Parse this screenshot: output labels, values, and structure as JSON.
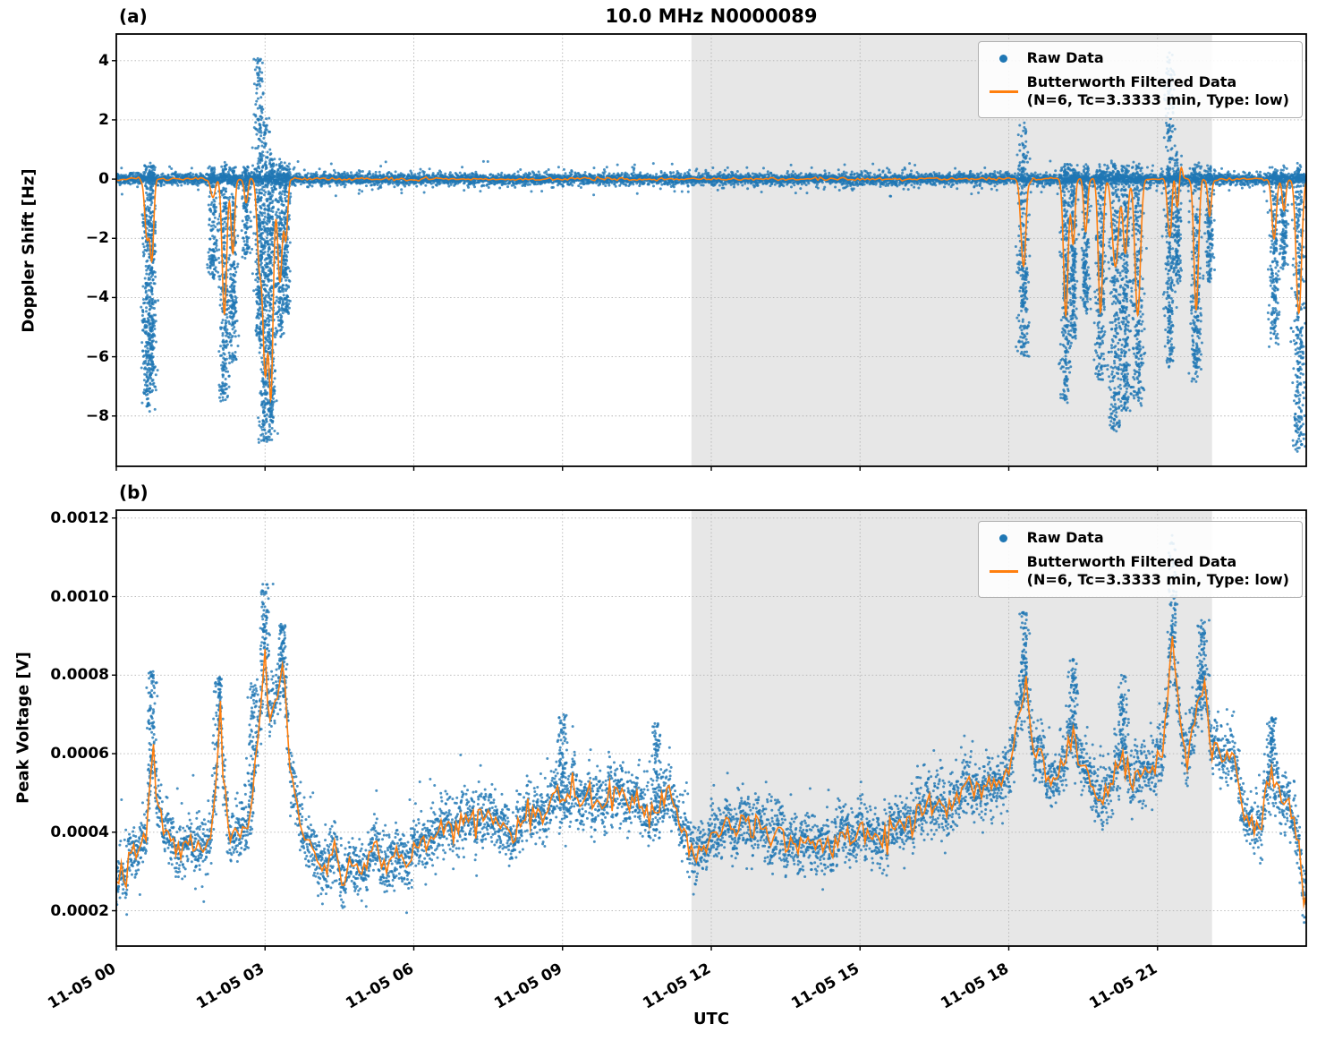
{
  "title": "10.0 MHz N0000089",
  "xlabel": "UTC",
  "xlim_hours": [
    0,
    24
  ],
  "xticks_hours": [
    0,
    3,
    6,
    9,
    12,
    15,
    18,
    21
  ],
  "xtick_labels": [
    "11-05 00",
    "11-05 03",
    "11-05 06",
    "11-05 09",
    "11-05 12",
    "11-05 15",
    "11-05 18",
    "11-05 21"
  ],
  "shaded_region_hours": [
    11.6,
    22.1
  ],
  "legend": {
    "raw": "Raw Data",
    "filtered_line1": "Butterworth Filtered Data",
    "filtered_line2": "(N=6, Tc=3.3333 min, Type: low)"
  },
  "colors": {
    "raw": "#1f77b4",
    "filtered": "#ff7f0e",
    "shade": "#e7e7e7",
    "grid": "#b3b3b3",
    "spine": "#000000"
  },
  "panels": [
    {
      "label": "(a)",
      "ylabel": "Doppler Shift [Hz]",
      "ylim": [
        -9.7,
        4.9
      ],
      "yticks": [
        4,
        2,
        0,
        -2,
        -4,
        -6,
        -8
      ],
      "ytick_labels": [
        "4",
        "2",
        "0",
        "−2",
        "−4",
        "−6",
        "−8"
      ]
    },
    {
      "label": "(b)",
      "ylabel": "Peak Voltage [V]",
      "ylim": [
        0.00011,
        0.00122
      ],
      "yticks": [
        0.0012,
        0.001,
        0.0008,
        0.0006,
        0.0004,
        0.0002
      ],
      "ytick_labels": [
        "0.0012",
        "0.0010",
        "0.0008",
        "0.0006",
        "0.0004",
        "0.0002"
      ]
    }
  ],
  "chart_data": [
    {
      "type": "scatter",
      "panel": "a",
      "title": "10.0 MHz N0000089",
      "ylabel": "Doppler Shift [Hz]",
      "xlabel": "UTC",
      "x_unit": "hours after 11-05 00:00 UTC",
      "ylim": [
        -9.7,
        4.9
      ],
      "series": [
        {
          "name": "Raw Data",
          "style": "scatter",
          "color": "#1f77b4"
        },
        {
          "name": "Butterworth Filtered Data (N=6, Tc=3.3333 min, Type: low)",
          "style": "line",
          "color": "#ff7f0e"
        }
      ],
      "baseline_hz": 0,
      "baseline_noise_sigma_hz": 0.12,
      "events": [
        {
          "t": 0.62,
          "width": 0.05,
          "min": -7.8,
          "max": 0.6,
          "filtered_min": -2.0
        },
        {
          "t": 0.72,
          "width": 0.04,
          "min": -7.2,
          "max": 0.5,
          "filtered_min": -2.6
        },
        {
          "t": 1.95,
          "width": 0.05,
          "min": -3.3,
          "max": 0.4,
          "filtered_min": -0.6
        },
        {
          "t": 2.18,
          "width": 0.05,
          "min": -7.5,
          "max": 0.5,
          "filtered_min": -4.6
        },
        {
          "t": 2.35,
          "width": 0.04,
          "min": -6.2,
          "max": 0.4,
          "filtered_min": -2.5
        },
        {
          "t": 2.62,
          "width": 0.04,
          "min": -2.6,
          "max": 0.4,
          "filtered_min": -0.8
        },
        {
          "t": 2.88,
          "width": 0.05,
          "min": -5.5,
          "max": 4.1,
          "filtered_min": -2.5
        },
        {
          "t": 3.0,
          "width": 0.06,
          "min": -9.0,
          "max": 2.0,
          "filtered_min": -6.5
        },
        {
          "t": 3.12,
          "width": 0.05,
          "min": -8.8,
          "max": 0.8,
          "filtered_min": -7.0
        },
        {
          "t": 3.3,
          "width": 0.05,
          "min": -5.3,
          "max": 0.6,
          "filtered_min": -3.5
        },
        {
          "t": 3.42,
          "width": 0.04,
          "min": -4.6,
          "max": 0.5,
          "filtered_min": -2.0
        },
        {
          "t": 18.3,
          "width": 0.06,
          "min": -6.0,
          "max": 1.75,
          "filtered_min": -3.0
        },
        {
          "t": 19.15,
          "width": 0.05,
          "min": -7.5,
          "max": 0.5,
          "filtered_min": -4.6
        },
        {
          "t": 19.3,
          "width": 0.04,
          "min": -5.5,
          "max": 0.4,
          "filtered_min": -2.2
        },
        {
          "t": 19.55,
          "width": 0.04,
          "min": -4.5,
          "max": 0.4,
          "filtered_min": -1.8
        },
        {
          "t": 19.85,
          "width": 0.05,
          "min": -6.8,
          "max": 0.5,
          "filtered_min": -4.5
        },
        {
          "t": 20.15,
          "width": 0.07,
          "min": -8.5,
          "max": 0.6,
          "filtered_min": -3.0
        },
        {
          "t": 20.35,
          "width": 0.05,
          "min": -7.9,
          "max": 0.5,
          "filtered_min": -2.5
        },
        {
          "t": 20.6,
          "width": 0.06,
          "min": -7.6,
          "max": 0.5,
          "filtered_min": -4.6
        },
        {
          "t": 21.25,
          "width": 0.05,
          "min": -6.3,
          "max": 4.2,
          "filtered_min": -2.0
        },
        {
          "t": 21.4,
          "width": 0.04,
          "min": -3.5,
          "max": 1.0,
          "filtered_min": -1.0
        },
        {
          "t": 21.78,
          "width": 0.05,
          "min": -6.8,
          "max": 0.5,
          "filtered_min": -4.4
        },
        {
          "t": 22.05,
          "width": 0.04,
          "min": -3.5,
          "max": 0.4,
          "filtered_min": -1.2
        },
        {
          "t": 23.35,
          "width": 0.05,
          "min": -5.6,
          "max": 0.4,
          "filtered_min": -2.0
        },
        {
          "t": 23.55,
          "width": 0.04,
          "min": -3.0,
          "max": 0.3,
          "filtered_min": -1.0
        },
        {
          "t": 23.85,
          "width": 0.06,
          "min": -9.1,
          "max": 0.5,
          "filtered_min": -4.6
        }
      ]
    },
    {
      "type": "scatter",
      "panel": "b",
      "ylabel": "Peak Voltage [V]",
      "xlabel": "UTC",
      "x_unit": "hours after 11-05 00:00 UTC",
      "ylim": [
        0.00011,
        0.00122
      ],
      "series": [
        {
          "name": "Raw Data",
          "style": "scatter",
          "color": "#1f77b4"
        },
        {
          "name": "Butterworth Filtered Data (N=6, Tc=3.3333 min, Type: low)",
          "style": "line",
          "color": "#ff7f0e"
        }
      ],
      "raw_noise_sigma_v": 3.5e-05,
      "filtered_keypoints_hour_volts": [
        [
          0,
          0.00028
        ],
        [
          0.2,
          0.00032
        ],
        [
          0.4,
          0.00036
        ],
        [
          0.6,
          0.0004
        ],
        [
          0.7,
          0.00055
        ],
        [
          0.75,
          0.00065
        ],
        [
          0.8,
          0.0005
        ],
        [
          0.9,
          0.00042
        ],
        [
          1.1,
          0.0004
        ],
        [
          1.3,
          0.00036
        ],
        [
          1.5,
          0.00038
        ],
        [
          1.7,
          0.00034
        ],
        [
          1.9,
          0.0004
        ],
        [
          2.05,
          0.00058
        ],
        [
          2.1,
          0.00075
        ],
        [
          2.15,
          0.00055
        ],
        [
          2.3,
          0.0004
        ],
        [
          2.5,
          0.00038
        ],
        [
          2.7,
          0.00045
        ],
        [
          2.8,
          0.00055
        ],
        [
          2.95,
          0.0008
        ],
        [
          3.0,
          0.00085
        ],
        [
          3.1,
          0.00065
        ],
        [
          3.25,
          0.00075
        ],
        [
          3.35,
          0.00082
        ],
        [
          3.5,
          0.0006
        ],
        [
          3.6,
          0.0005
        ],
        [
          3.7,
          0.00045
        ],
        [
          3.8,
          0.00038
        ],
        [
          4.0,
          0.00034
        ],
        [
          4.2,
          0.0003
        ],
        [
          4.4,
          0.00034
        ],
        [
          4.6,
          0.00028
        ],
        [
          4.8,
          0.00032
        ],
        [
          5.0,
          0.0003
        ],
        [
          5.2,
          0.00036
        ],
        [
          5.4,
          0.00032
        ],
        [
          5.6,
          0.00035
        ],
        [
          5.8,
          0.00032
        ],
        [
          6.0,
          0.00036
        ],
        [
          6.2,
          0.0004
        ],
        [
          6.4,
          0.00038
        ],
        [
          6.6,
          0.00042
        ],
        [
          6.8,
          0.0004
        ],
        [
          7.0,
          0.00044
        ],
        [
          7.2,
          0.00042
        ],
        [
          7.4,
          0.00046
        ],
        [
          7.6,
          0.00044
        ],
        [
          7.8,
          0.00042
        ],
        [
          8.0,
          0.0004
        ],
        [
          8.2,
          0.00044
        ],
        [
          8.4,
          0.00046
        ],
        [
          8.6,
          0.00044
        ],
        [
          8.8,
          0.00048
        ],
        [
          9.0,
          0.0005
        ],
        [
          9.2,
          0.00052
        ],
        [
          9.4,
          0.00048
        ],
        [
          9.6,
          0.0005
        ],
        [
          9.8,
          0.00046
        ],
        [
          10.0,
          0.00048
        ],
        [
          10.2,
          0.0005
        ],
        [
          10.4,
          0.00046
        ],
        [
          10.6,
          0.00048
        ],
        [
          10.8,
          0.00044
        ],
        [
          11.0,
          0.00046
        ],
        [
          11.2,
          0.0005
        ],
        [
          11.4,
          0.00042
        ],
        [
          11.6,
          0.00034
        ],
        [
          11.8,
          0.00036
        ],
        [
          12.0,
          0.00038
        ],
        [
          12.2,
          0.00042
        ],
        [
          12.4,
          0.0004
        ],
        [
          12.6,
          0.00044
        ],
        [
          12.8,
          0.0004
        ],
        [
          13.0,
          0.00042
        ],
        [
          13.2,
          0.00038
        ],
        [
          13.4,
          0.0004
        ],
        [
          13.6,
          0.00036
        ],
        [
          13.8,
          0.00038
        ],
        [
          14.0,
          0.00036
        ],
        [
          14.2,
          0.00038
        ],
        [
          14.4,
          0.00036
        ],
        [
          14.6,
          0.0004
        ],
        [
          14.8,
          0.00038
        ],
        [
          15.0,
          0.00042
        ],
        [
          15.2,
          0.0004
        ],
        [
          15.4,
          0.00038
        ],
        [
          15.6,
          0.0004
        ],
        [
          15.8,
          0.00042
        ],
        [
          16.0,
          0.0004
        ],
        [
          16.2,
          0.00044
        ],
        [
          16.4,
          0.00046
        ],
        [
          16.6,
          0.00048
        ],
        [
          16.8,
          0.00046
        ],
        [
          17.0,
          0.0005
        ],
        [
          17.2,
          0.00052
        ],
        [
          17.4,
          0.0005
        ],
        [
          17.6,
          0.00054
        ],
        [
          17.8,
          0.00052
        ],
        [
          18.0,
          0.00056
        ],
        [
          18.2,
          0.0007
        ],
        [
          18.35,
          0.00078
        ],
        [
          18.5,
          0.0006
        ],
        [
          18.7,
          0.00055
        ],
        [
          18.9,
          0.00052
        ],
        [
          19.1,
          0.00058
        ],
        [
          19.3,
          0.00065
        ],
        [
          19.5,
          0.00055
        ],
        [
          19.7,
          0.0005
        ],
        [
          19.9,
          0.00048
        ],
        [
          20.1,
          0.00055
        ],
        [
          20.3,
          0.0006
        ],
        [
          20.5,
          0.00052
        ],
        [
          20.7,
          0.00055
        ],
        [
          20.9,
          0.00058
        ],
        [
          21.1,
          0.00062
        ],
        [
          21.3,
          0.0009
        ],
        [
          21.45,
          0.00065
        ],
        [
          21.6,
          0.0006
        ],
        [
          21.8,
          0.00072
        ],
        [
          21.95,
          0.00078
        ],
        [
          22.1,
          0.0006
        ],
        [
          22.3,
          0.00058
        ],
        [
          22.5,
          0.0006
        ],
        [
          22.7,
          0.00048
        ],
        [
          22.9,
          0.0004
        ],
        [
          23.1,
          0.00044
        ],
        [
          23.3,
          0.00055
        ],
        [
          23.5,
          0.0005
        ],
        [
          23.7,
          0.00045
        ],
        [
          23.85,
          0.00035
        ],
        [
          24,
          0.00022
        ]
      ],
      "raw_peak_clusters": [
        [
          0.72,
          0.00081
        ],
        [
          2.05,
          0.0008
        ],
        [
          2.75,
          0.00079
        ],
        [
          3.0,
          0.00104
        ],
        [
          3.35,
          0.00093
        ],
        [
          9.0,
          0.0007
        ],
        [
          10.9,
          0.00068
        ],
        [
          18.3,
          0.00096
        ],
        [
          19.3,
          0.00085
        ],
        [
          20.3,
          0.0008
        ],
        [
          21.3,
          0.00116
        ],
        [
          21.9,
          0.00094
        ],
        [
          23.3,
          0.0007
        ]
      ]
    }
  ]
}
